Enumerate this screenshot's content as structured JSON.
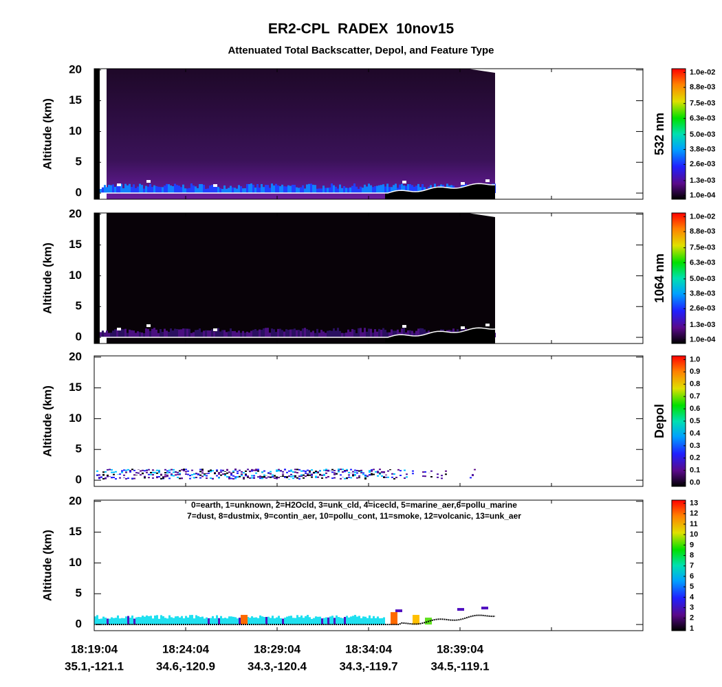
{
  "chart_data": {
    "type": "curtain",
    "title": "ER2-CPL  RADEX  10nov15",
    "subtitle": "Attenuated Total Backscatter, Depol, and Feature Type",
    "categories": [
      "18:19:04",
      "18:24:04",
      "18:29:04",
      "18:34:04",
      "18:39:04",
      null,
      null
    ],
    "coordinates": [
      "35.1,-121.1",
      "34.6,-120.9",
      "34.3,-120.4",
      "34.3,-119.7",
      "34.5,-119.1",
      null,
      null
    ],
    "panels": [
      {
        "ylabel": "Altitude (km)",
        "ylim": [
          -1,
          20.2
        ],
        "yticks": [
          0,
          5,
          10,
          15,
          20
        ],
        "colorbar_label": "532 nm",
        "clim": [
          -0.0002,
          0.0103
        ],
        "cticks": [
          {
            "value": 0.0001,
            "label": "1.0e-04"
          },
          {
            "value": 0.0013,
            "label": "1.3e-03"
          },
          {
            "value": 0.0026,
            "label": "2.6e-03"
          },
          {
            "value": 0.0038,
            "label": "3.8e-03"
          },
          {
            "value": 0.005,
            "label": "5.0e-03"
          },
          {
            "value": 0.0063,
            "label": "6.3e-03"
          },
          {
            "value": 0.0075,
            "label": "7.5e-03"
          },
          {
            "value": 0.0088,
            "label": "8.8e-03"
          },
          {
            "value": 0.01,
            "label": "1.0e-02"
          }
        ]
      },
      {
        "ylabel": "Altitude (km)",
        "ylim": [
          -1,
          20.2
        ],
        "yticks": [
          0,
          5,
          10,
          15,
          20
        ],
        "colorbar_label": "1064 nm",
        "clim": [
          -0.0002,
          0.0103
        ],
        "cticks": [
          {
            "value": 0.0001,
            "label": "1.0e-04"
          },
          {
            "value": 0.0013,
            "label": "1.3e-03"
          },
          {
            "value": 0.0026,
            "label": "2.6e-03"
          },
          {
            "value": 0.0038,
            "label": "3.8e-03"
          },
          {
            "value": 0.005,
            "label": "5.0e-03"
          },
          {
            "value": 0.0063,
            "label": "6.3e-03"
          },
          {
            "value": 0.0075,
            "label": "7.5e-03"
          },
          {
            "value": 0.0088,
            "label": "8.8e-03"
          },
          {
            "value": 0.01,
            "label": "1.0e-02"
          }
        ]
      },
      {
        "ylabel": "Altitude (km)",
        "ylim": [
          -1,
          20.2
        ],
        "yticks": [
          0,
          5,
          10,
          15,
          20
        ],
        "colorbar_label": "Depol",
        "clim": [
          -0.03,
          1.03
        ],
        "cticks": [
          {
            "value": 0,
            "label": "0.0"
          },
          0.1,
          0.2,
          0.3,
          0.4,
          0.5,
          0.6,
          0.7,
          0.8,
          0.9,
          {
            "value": 1,
            "label": "1.0"
          }
        ]
      },
      {
        "ylabel": "Altitude (km)",
        "ylim": [
          -1,
          20.2
        ],
        "yticks": [
          0,
          5,
          10,
          15,
          20
        ],
        "legend_text": [
          "0=earth, 1=unknown, 2=H2Ocld, 3=unk_cld, 4=icecld, 5=marine_aer,6=pollu_marine",
          "7=dust, 8=dustmix, 9=contin_aer, 10=pollu_cont, 11=smoke, 12=volcanic, 13=unk_aer"
        ],
        "clim": [
          0.8,
          13.3
        ],
        "cticks": [
          1,
          2,
          3,
          4,
          5,
          6,
          7,
          8,
          9,
          10,
          11,
          12,
          13
        ]
      }
    ]
  }
}
